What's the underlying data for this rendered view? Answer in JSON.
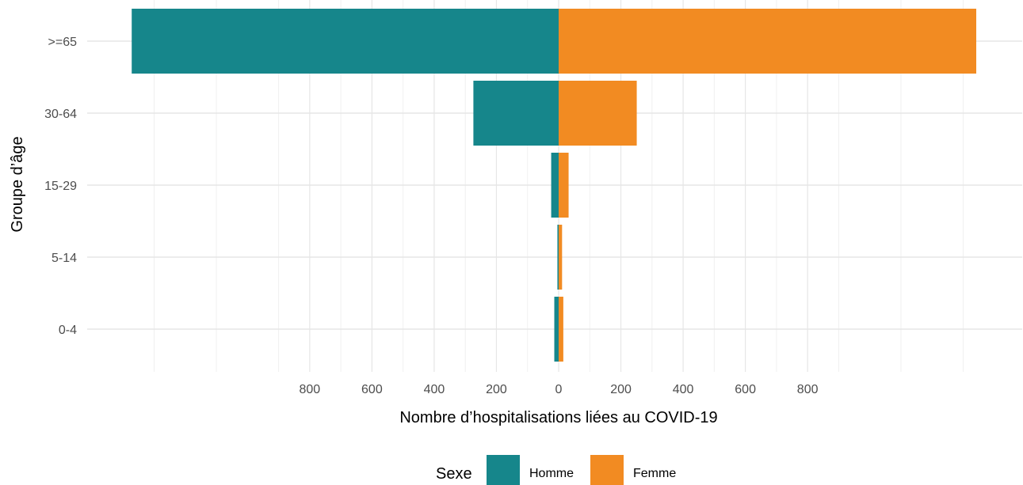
{
  "chart_data": {
    "type": "bar",
    "orientation": "horizontal-population-pyramid",
    "categories": [
      "0-4",
      "5-14",
      "15-29",
      "30-64",
      ">=65"
    ],
    "series": [
      {
        "name": "Homme",
        "values": [
          14,
          4,
          24,
          274,
          1372
        ],
        "color": "#16868b",
        "direction": "left"
      },
      {
        "name": "Femme",
        "values": [
          15,
          11,
          32,
          251,
          1342
        ],
        "color": "#f28b22",
        "direction": "right"
      }
    ],
    "x_tick_labels": [
      "800",
      "600",
      "400",
      "200",
      "0",
      "200",
      "400",
      "600",
      "800"
    ],
    "x_tick_values": [
      -800,
      -600,
      -400,
      -200,
      0,
      200,
      400,
      600,
      800
    ],
    "xlim": [
      -1490,
      1490
    ],
    "xlabel": "Nombre d’hospitalisations liées au COVID-19",
    "ylabel": "Groupe d’âge",
    "grid": true,
    "legend": {
      "title": "Sexe",
      "position": "bottom"
    }
  }
}
